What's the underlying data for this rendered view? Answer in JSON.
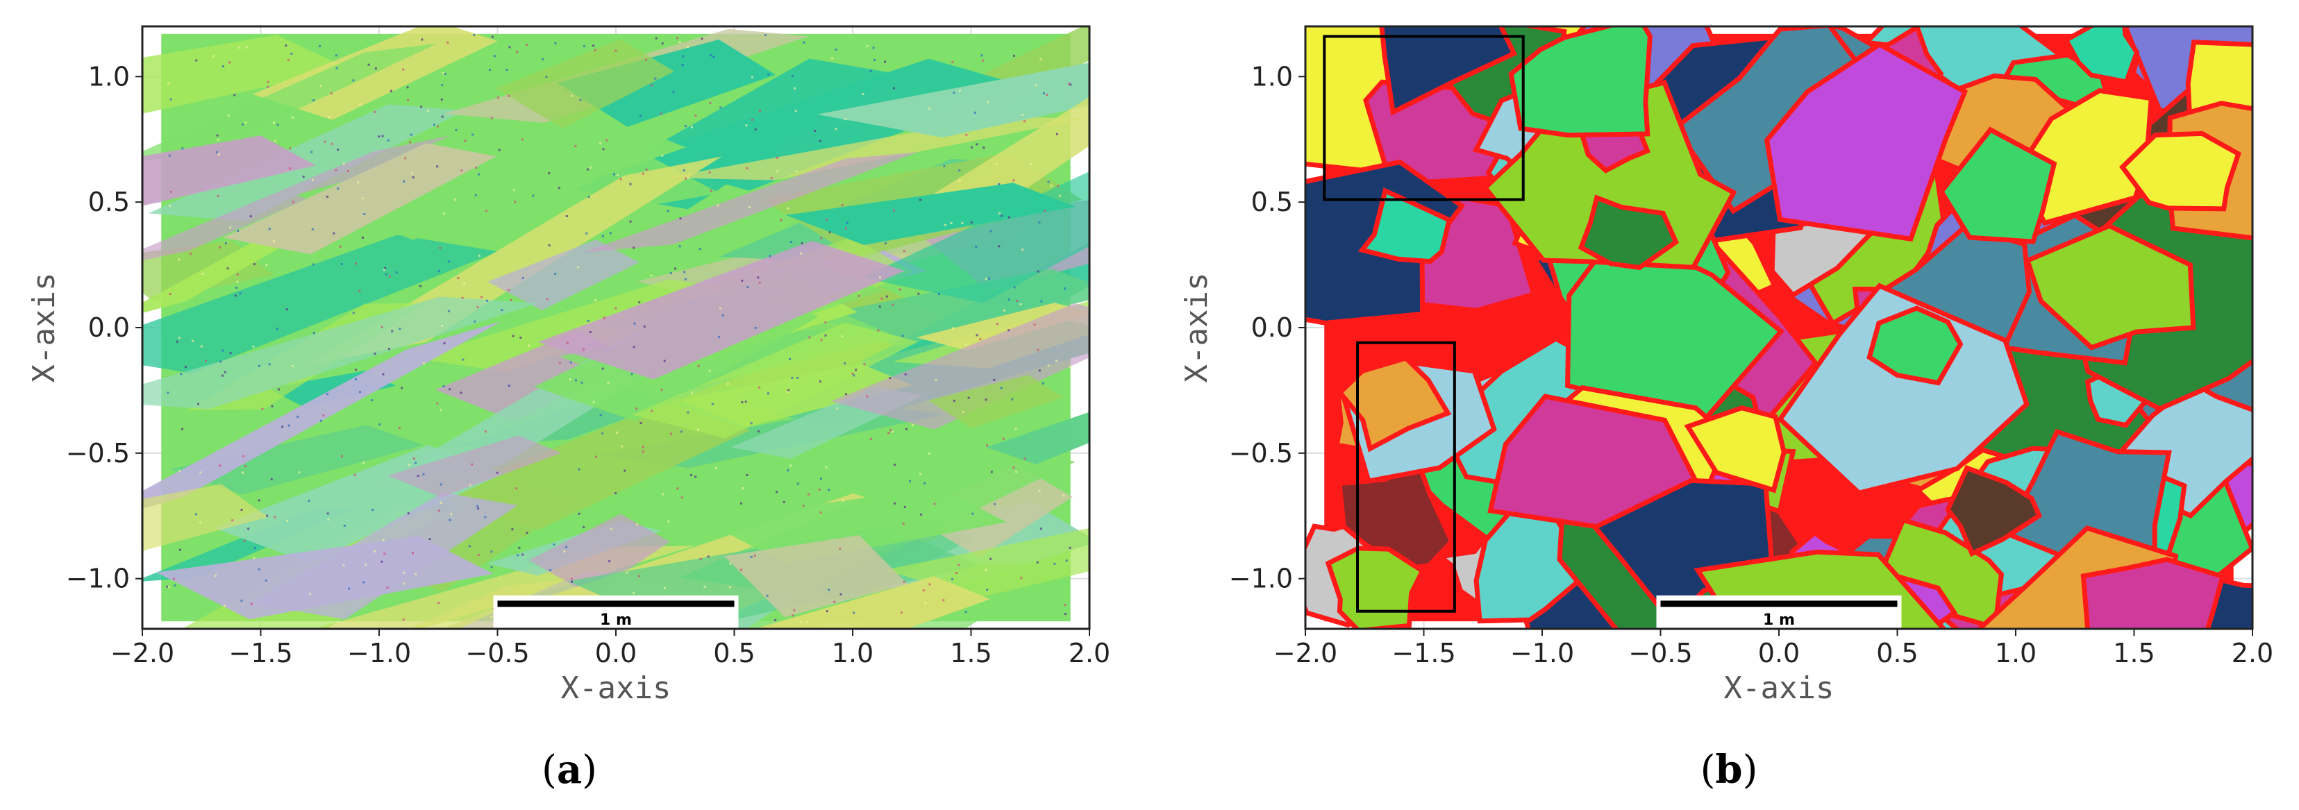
{
  "chart_data": [
    {
      "panel": "a",
      "type": "scatter",
      "title": "",
      "xlabel": "X-axis",
      "ylabel": "X-axis",
      "xlim": [
        -2.0,
        2.0
      ],
      "ylim": [
        -1.2,
        1.2
      ],
      "xticks": [
        -2.0,
        -1.5,
        -1.0,
        -0.5,
        0.0,
        0.5,
        1.0,
        1.5,
        2.0
      ],
      "xtick_labels": [
        "−2.0",
        "−1.5",
        "−1.0",
        "−0.5",
        "0.0",
        "0.5",
        "1.0",
        "1.5",
        "2.0"
      ],
      "yticks": [
        -1.0,
        -0.5,
        0.0,
        0.5,
        1.0
      ],
      "ytick_labels": [
        "−1.0",
        "−0.5",
        "0.0",
        "0.5",
        "1.0"
      ],
      "grid": true,
      "data_extent": {
        "x": [
          -1.92,
          1.92
        ],
        "y": [
          -1.17,
          1.17
        ]
      },
      "scale_bar": {
        "label": "1 m",
        "x": [
          -0.5,
          0.5
        ],
        "y": -1.1
      },
      "palette": [
        "#7fe06a",
        "#a8e85a",
        "#2fc99a",
        "#b9b2d8",
        "#c9c8a0",
        "#8ed9b0",
        "#d6e070",
        "#5fd08a",
        "#c7a0c8",
        "#9ad35a"
      ],
      "panel_label": "a"
    },
    {
      "panel": "b",
      "type": "scatter",
      "title": "",
      "xlabel": "X-axis",
      "ylabel": "X-axis",
      "xlim": [
        -2.0,
        2.0
      ],
      "ylim": [
        -1.2,
        1.2
      ],
      "xticks": [
        -2.0,
        -1.5,
        -1.0,
        -0.5,
        0.0,
        0.5,
        1.0,
        1.5,
        2.0
      ],
      "xtick_labels": [
        "−2.0",
        "−1.5",
        "−1.0",
        "−0.5",
        "0.0",
        "0.5",
        "1.0",
        "1.5",
        "2.0"
      ],
      "yticks": [
        -1.0,
        -0.5,
        0.0,
        0.5,
        1.0
      ],
      "ytick_labels": [
        "−1.0",
        "−0.5",
        "0.0",
        "0.5",
        "1.0"
      ],
      "grid": true,
      "data_extent": {
        "x": [
          -1.92,
          1.92
        ],
        "y": [
          -1.17,
          1.17
        ]
      },
      "scale_bar": {
        "label": "1 m",
        "x": [
          -0.5,
          0.5
        ],
        "y": -1.1
      },
      "boundary_color": "#ff1a1a",
      "palette": [
        "#1a3a6e",
        "#8fd42a",
        "#2a8a3a",
        "#c04adc",
        "#5fd3c9",
        "#f2f23a",
        "#8a2a2a",
        "#7a7ad8",
        "#3ad66a",
        "#e8a43a",
        "#5a3a2a",
        "#9ad0e0",
        "#d03a9a",
        "#4a8aa0",
        "#c8c8c8",
        "#2ad6a4"
      ],
      "highlight_boxes": [
        {
          "x": [
            -1.92,
            -1.08
          ],
          "y": [
            0.51,
            1.16
          ]
        },
        {
          "x": [
            -1.78,
            -1.37
          ],
          "y": [
            -1.13,
            -0.06
          ]
        }
      ],
      "panel_label": "b"
    }
  ]
}
